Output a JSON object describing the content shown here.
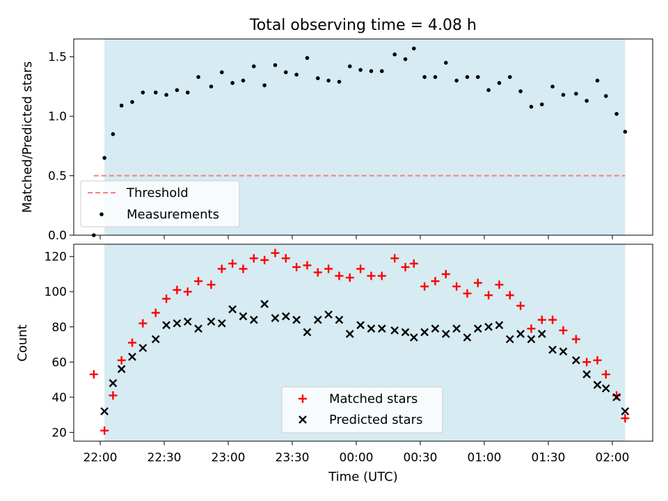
{
  "chart_data": [
    {
      "type": "scatter",
      "title": "Total observing time = 4.08 h",
      "ylabel": "Matched/Predicted stars",
      "xlabel": "",
      "ylim": [
        0,
        1.65
      ],
      "yticks": [
        "0.0",
        "0.5",
        "1.0",
        "1.5"
      ],
      "ytick_values": [
        0,
        0.5,
        1.0,
        1.5
      ],
      "grid": false,
      "legend_position": "lower-left",
      "observing_window": {
        "start": "22:02",
        "end": "02:06",
        "color": "#add8e6"
      },
      "threshold": {
        "name": "Threshold",
        "value": 0.5,
        "style": "dashed",
        "color": "#f08080",
        "x_start": "21:57",
        "x_end": "02:06"
      },
      "series": [
        {
          "name": "Measurements",
          "marker": "dot",
          "color": "#000000",
          "x": [
            "21:57",
            "22:02",
            "22:06",
            "22:10",
            "22:15",
            "22:20",
            "22:26",
            "22:31",
            "22:36",
            "22:41",
            "22:46",
            "22:52",
            "22:57",
            "23:02",
            "23:07",
            "23:12",
            "23:17",
            "23:22",
            "23:27",
            "23:32",
            "23:37",
            "23:42",
            "23:47",
            "23:52",
            "23:57",
            "00:02",
            "00:07",
            "00:12",
            "00:18",
            "00:23",
            "00:27",
            "00:32",
            "00:37",
            "00:42",
            "00:47",
            "00:52",
            "00:57",
            "01:02",
            "01:07",
            "01:12",
            "01:17",
            "01:22",
            "01:27",
            "01:32",
            "01:37",
            "01:43",
            "01:48",
            "01:53",
            "01:57",
            "02:02",
            "02:06"
          ],
          "y": [
            0.0,
            0.65,
            0.85,
            1.09,
            1.12,
            1.2,
            1.2,
            1.18,
            1.22,
            1.2,
            1.33,
            1.25,
            1.37,
            1.28,
            1.3,
            1.42,
            1.26,
            1.43,
            1.37,
            1.35,
            1.49,
            1.32,
            1.3,
            1.29,
            1.42,
            1.39,
            1.38,
            1.38,
            1.52,
            1.48,
            1.57,
            1.33,
            1.33,
            1.45,
            1.3,
            1.33,
            1.33,
            1.22,
            1.28,
            1.33,
            1.21,
            1.08,
            1.1,
            1.25,
            1.18,
            1.19,
            1.13,
            1.3,
            1.17,
            1.02,
            0.87
          ]
        }
      ]
    },
    {
      "type": "scatter",
      "title": "",
      "ylabel": "Count",
      "xlabel": "Time (UTC)",
      "ylim": [
        15,
        127
      ],
      "yticks": [
        "20",
        "40",
        "60",
        "80",
        "100",
        "120"
      ],
      "ytick_values": [
        20,
        40,
        60,
        80,
        100,
        120
      ],
      "xticks": [
        "22:00",
        "22:30",
        "23:00",
        "23:30",
        "00:00",
        "00:30",
        "01:00",
        "01:30",
        "02:00"
      ],
      "grid": false,
      "legend_position": "lower-center",
      "observing_window": {
        "start": "22:02",
        "end": "02:06",
        "color": "#add8e6"
      },
      "x": [
        "21:57",
        "22:02",
        "22:06",
        "22:10",
        "22:15",
        "22:20",
        "22:26",
        "22:31",
        "22:36",
        "22:41",
        "22:46",
        "22:52",
        "22:57",
        "23:02",
        "23:07",
        "23:12",
        "23:17",
        "23:22",
        "23:27",
        "23:32",
        "23:37",
        "23:42",
        "23:47",
        "23:52",
        "23:57",
        "00:02",
        "00:07",
        "00:12",
        "00:18",
        "00:23",
        "00:27",
        "00:32",
        "00:37",
        "00:42",
        "00:47",
        "00:52",
        "00:57",
        "01:02",
        "01:07",
        "01:12",
        "01:17",
        "01:22",
        "01:27",
        "01:32",
        "01:37",
        "01:43",
        "01:48",
        "01:53",
        "01:57",
        "02:02",
        "02:06"
      ],
      "series": [
        {
          "name": "Matched stars",
          "marker": "plus",
          "color": "#ff0000",
          "values": [
            53,
            21,
            41,
            61,
            71,
            82,
            88,
            96,
            101,
            100,
            106,
            104,
            113,
            116,
            113,
            119,
            118,
            122,
            119,
            114,
            115,
            111,
            113,
            109,
            108,
            113,
            109,
            109,
            119,
            114,
            116,
            103,
            106,
            110,
            103,
            99,
            105,
            98,
            104,
            98,
            92,
            79,
            84,
            84,
            78,
            73,
            60,
            61,
            53,
            41,
            28
          ]
        },
        {
          "name": "Predicted stars",
          "marker": "x",
          "color": "#000000",
          "values": [
            null,
            32,
            48,
            56,
            63,
            68,
            73,
            81,
            82,
            83,
            79,
            83,
            82,
            90,
            86,
            84,
            93,
            85,
            86,
            84,
            77,
            84,
            87,
            84,
            76,
            81,
            79,
            79,
            78,
            77,
            74,
            77,
            79,
            76,
            79,
            74,
            79,
            80,
            81,
            73,
            76,
            73,
            76,
            67,
            66,
            61,
            53,
            47,
            45,
            40,
            32
          ]
        }
      ]
    }
  ]
}
